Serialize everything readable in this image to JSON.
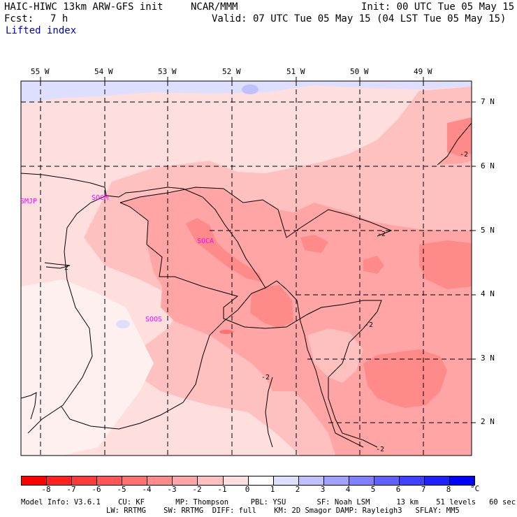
{
  "header": {
    "model": "HAIC-HIWC 13km ARW-GFS init",
    "org": "NCAR/MMM",
    "init": "Init: 00 UTC Tue 05 May 15",
    "fcst_label": "Fcst:",
    "fcst_value": "7 h",
    "valid": "Valid: 07 UTC Tue 05 May 15 (04 LST Tue 05 May 15)",
    "field": "Lifted index"
  },
  "map": {
    "lon_labels": [
      "55 W",
      "54 W",
      "53 W",
      "52 W",
      "51 W",
      "50 W",
      "49 W"
    ],
    "lat_labels": [
      "7 N",
      "6 N",
      "5 N",
      "4 N",
      "3 N",
      "2 N"
    ],
    "stations": [
      "SMJP",
      "SOCM",
      "SOCA",
      "SOOS"
    ],
    "contour_labels": [
      "-2",
      "-2",
      "-2",
      "-2",
      "-2",
      "-2"
    ]
  },
  "colorbar": {
    "labels": [
      "-8",
      "-7",
      "-6",
      "-5",
      "-4",
      "-3",
      "-2",
      "-1",
      "0",
      "1",
      "2",
      "3",
      "4",
      "5",
      "6",
      "7",
      "8"
    ],
    "unit": "°C",
    "colors": [
      "#ff0000",
      "#ff2020",
      "#ff3a3a",
      "#ff5555",
      "#ff7070",
      "#ff8a8a",
      "#ffa5a5",
      "#ffc0c0",
      "#ffdede",
      "#ffffff",
      "#dedeff",
      "#c0c0ff",
      "#a0a0ff",
      "#8080ff",
      "#6060ff",
      "#4040ff",
      "#2020ff",
      "#0000ff"
    ]
  },
  "footer": {
    "line1": "Model Info: V3.6.1    CU: KF       MP: Thompson     PBL: YSU       SF: Noah LSM      13 km    51 levels   60 sec",
    "line2": "LW: RRTMG    SW: RRTMG  DIFF: full    KM: 2D Smagor DAMP: Rayleigh3   SFLAY: MM5"
  }
}
